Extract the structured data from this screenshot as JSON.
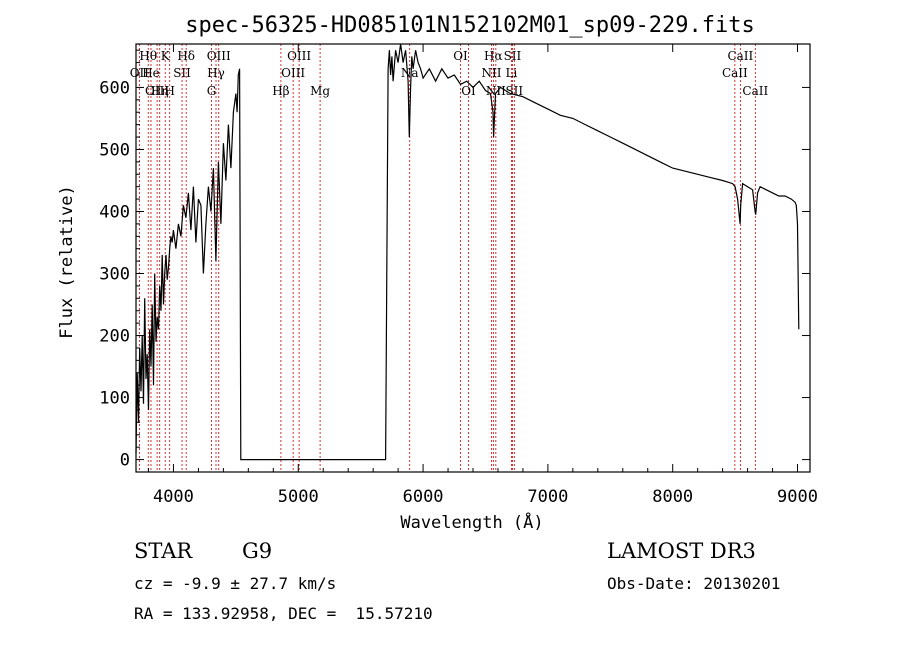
{
  "chart_data": {
    "type": "line",
    "title": "spec-56325-HD085101N152102M01_sp09-229.fits",
    "xlabel": "Wavelength (Å)",
    "ylabel": "Flux (relative)",
    "xlim": [
      3700,
      9100
    ],
    "ylim": [
      -20,
      670
    ],
    "xticks": [
      4000,
      5000,
      6000,
      7000,
      8000,
      9000
    ],
    "yticks": [
      0,
      100,
      200,
      300,
      400,
      500,
      600
    ],
    "series": [
      {
        "name": "spectrum",
        "x": [
          3700,
          3710,
          3720,
          3730,
          3740,
          3750,
          3760,
          3770,
          3780,
          3790,
          3800,
          3810,
          3820,
          3830,
          3840,
          3850,
          3860,
          3870,
          3880,
          3890,
          3900,
          3910,
          3920,
          3930,
          3940,
          3950,
          3960,
          3970,
          3980,
          3990,
          4000,
          4020,
          4040,
          4060,
          4080,
          4100,
          4120,
          4140,
          4160,
          4180,
          4200,
          4220,
          4240,
          4260,
          4280,
          4300,
          4320,
          4340,
          4360,
          4380,
          4400,
          4420,
          4440,
          4460,
          4480,
          4500,
          4510,
          4520,
          4530,
          4540,
          4545,
          4550,
          5700,
          5720,
          5730,
          5740,
          5750,
          5760,
          5780,
          5800,
          5820,
          5840,
          5860,
          5880,
          5890,
          5900,
          5910,
          5920,
          5940,
          5960,
          5980,
          6000,
          6050,
          6100,
          6150,
          6200,
          6250,
          6300,
          6350,
          6400,
          6450,
          6500,
          6540,
          6560,
          6565,
          6580,
          6620,
          6700,
          6800,
          6900,
          7000,
          7100,
          7200,
          7300,
          7400,
          7500,
          7600,
          7700,
          7800,
          7900,
          8000,
          8100,
          8200,
          8300,
          8400,
          8480,
          8500,
          8520,
          8540,
          8545,
          8560,
          8600,
          8640,
          8660,
          8665,
          8680,
          8700,
          8750,
          8800,
          8850,
          8900,
          8950,
          8980,
          8990,
          9000,
          9010
        ],
        "y": [
          10,
          140,
          60,
          180,
          110,
          200,
          90,
          260,
          130,
          170,
          80,
          210,
          150,
          250,
          120,
          300,
          190,
          230,
          210,
          280,
          240,
          330,
          250,
          300,
          330,
          290,
          310,
          340,
          360,
          350,
          370,
          340,
          380,
          360,
          410,
          390,
          430,
          370,
          440,
          350,
          420,
          410,
          300,
          380,
          440,
          400,
          470,
          320,
          480,
          380,
          510,
          450,
          540,
          470,
          560,
          590,
          560,
          620,
          630,
          0,
          0,
          0,
          0,
          630,
          660,
          620,
          650,
          610,
          660,
          640,
          670,
          640,
          660,
          610,
          520,
          600,
          650,
          630,
          660,
          640,
          630,
          615,
          630,
          610,
          630,
          615,
          620,
          605,
          610,
          600,
          610,
          595,
          590,
          560,
          520,
          590,
          600,
          590,
          585,
          575,
          565,
          555,
          550,
          540,
          530,
          520,
          510,
          500,
          490,
          480,
          470,
          465,
          460,
          455,
          450,
          445,
          440,
          420,
          380,
          410,
          445,
          440,
          435,
          400,
          395,
          430,
          440,
          435,
          430,
          425,
          425,
          420,
          415,
          410,
          380,
          210
        ]
      }
    ],
    "spectral_lines": [
      {
        "label": "Hθ",
        "x": 3798,
        "row": 1
      },
      {
        "label": "He",
        "x": 3820,
        "row": 2
      },
      {
        "label": "K",
        "x": 3934,
        "row": 1
      },
      {
        "label": "H",
        "x": 3970,
        "row": 3
      },
      {
        "label": "Hδ",
        "x": 4102,
        "row": 1
      },
      {
        "label": "SII",
        "x": 4069,
        "row": 2
      },
      {
        "label": "OII",
        "x": 3727,
        "row": 2
      },
      {
        "label": "OIII",
        "x": 3869,
        "row": 3
      },
      {
        "label": "Hη",
        "x": 3890,
        "row": 3
      },
      {
        "label": "OIII",
        "x": 4363,
        "row": 1
      },
      {
        "label": "Hγ",
        "x": 4341,
        "row": 2
      },
      {
        "label": "G",
        "x": 4305,
        "row": 3
      },
      {
        "label": "Hβ",
        "x": 4861,
        "row": 3
      },
      {
        "label": "OIII",
        "x": 4959,
        "row": 2
      },
      {
        "label": "OIII",
        "x": 5007,
        "row": 1
      },
      {
        "label": "Mg",
        "x": 5175,
        "row": 3
      },
      {
        "label": "Na",
        "x": 5893,
        "row": 2
      },
      {
        "label": "OI",
        "x": 6300,
        "row": 1
      },
      {
        "label": "OI",
        "x": 6364,
        "row": 3
      },
      {
        "label": "Hα",
        "x": 6563,
        "row": 1
      },
      {
        "label": "NII",
        "x": 6548,
        "row": 2
      },
      {
        "label": "NII",
        "x": 6583,
        "row": 3
      },
      {
        "label": "SII",
        "x": 6716,
        "row": 1
      },
      {
        "label": "Li",
        "x": 6708,
        "row": 2
      },
      {
        "label": "SII",
        "x": 6731,
        "row": 3
      },
      {
        "label": "CaII",
        "x": 8542,
        "row": 1
      },
      {
        "label": "CaII",
        "x": 8498,
        "row": 2
      },
      {
        "label": "CaII",
        "x": 8662,
        "row": 3
      }
    ]
  },
  "info": {
    "object_class": "STAR",
    "subclass": "G9",
    "survey": "LAMOST DR3",
    "redshift": "cz = -9.9 ± 27.7 km/s",
    "obs_date": "Obs-Date: 20130201",
    "coords": "RA = 133.92958, DEC =  15.57210"
  },
  "colors": {
    "line": "#000000",
    "marker_lines": "#cc0000",
    "background": "#ffffff"
  }
}
